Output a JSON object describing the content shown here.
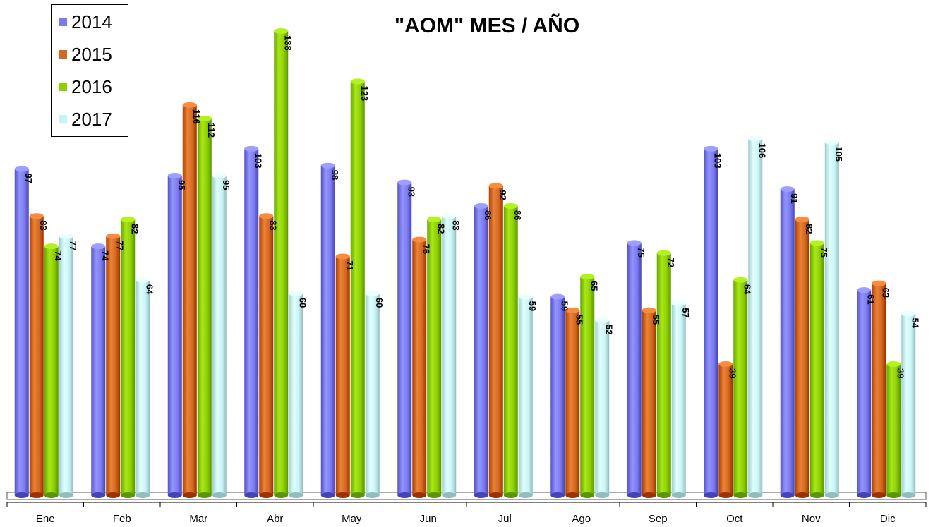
{
  "chart_data": {
    "type": "bar",
    "title": "\"AOM\"  MES / AÑO",
    "categories": [
      "Ene",
      "Feb",
      "Mar",
      "Abr",
      "May",
      "Jun",
      "Jul",
      "Ago",
      "Sep",
      "Oct",
      "Nov",
      "Dic"
    ],
    "series": [
      {
        "name": "2014",
        "color": "#7b7bef",
        "values": [
          97,
          74,
          95,
          103,
          98,
          93,
          86,
          59,
          75,
          103,
          91,
          61
        ]
      },
      {
        "name": "2015",
        "color": "#d2691e",
        "values": [
          83,
          77,
          116,
          83,
          71,
          76,
          92,
          55,
          55,
          39,
          82,
          63
        ]
      },
      {
        "name": "2016",
        "color": "#8fce00",
        "values": [
          74,
          82,
          112,
          138,
          123,
          82,
          86,
          65,
          72,
          64,
          75,
          39
        ]
      },
      {
        "name": "2017",
        "color": "#c8f4f6",
        "values": [
          77,
          64,
          95,
          60,
          60,
          83,
          59,
          52,
          57,
          106,
          105,
          54
        ]
      }
    ],
    "ylim": [
      0,
      140
    ],
    "grid": false,
    "legend_position": "top-left",
    "data_labels": true,
    "data_label_orientation": "vertical"
  }
}
